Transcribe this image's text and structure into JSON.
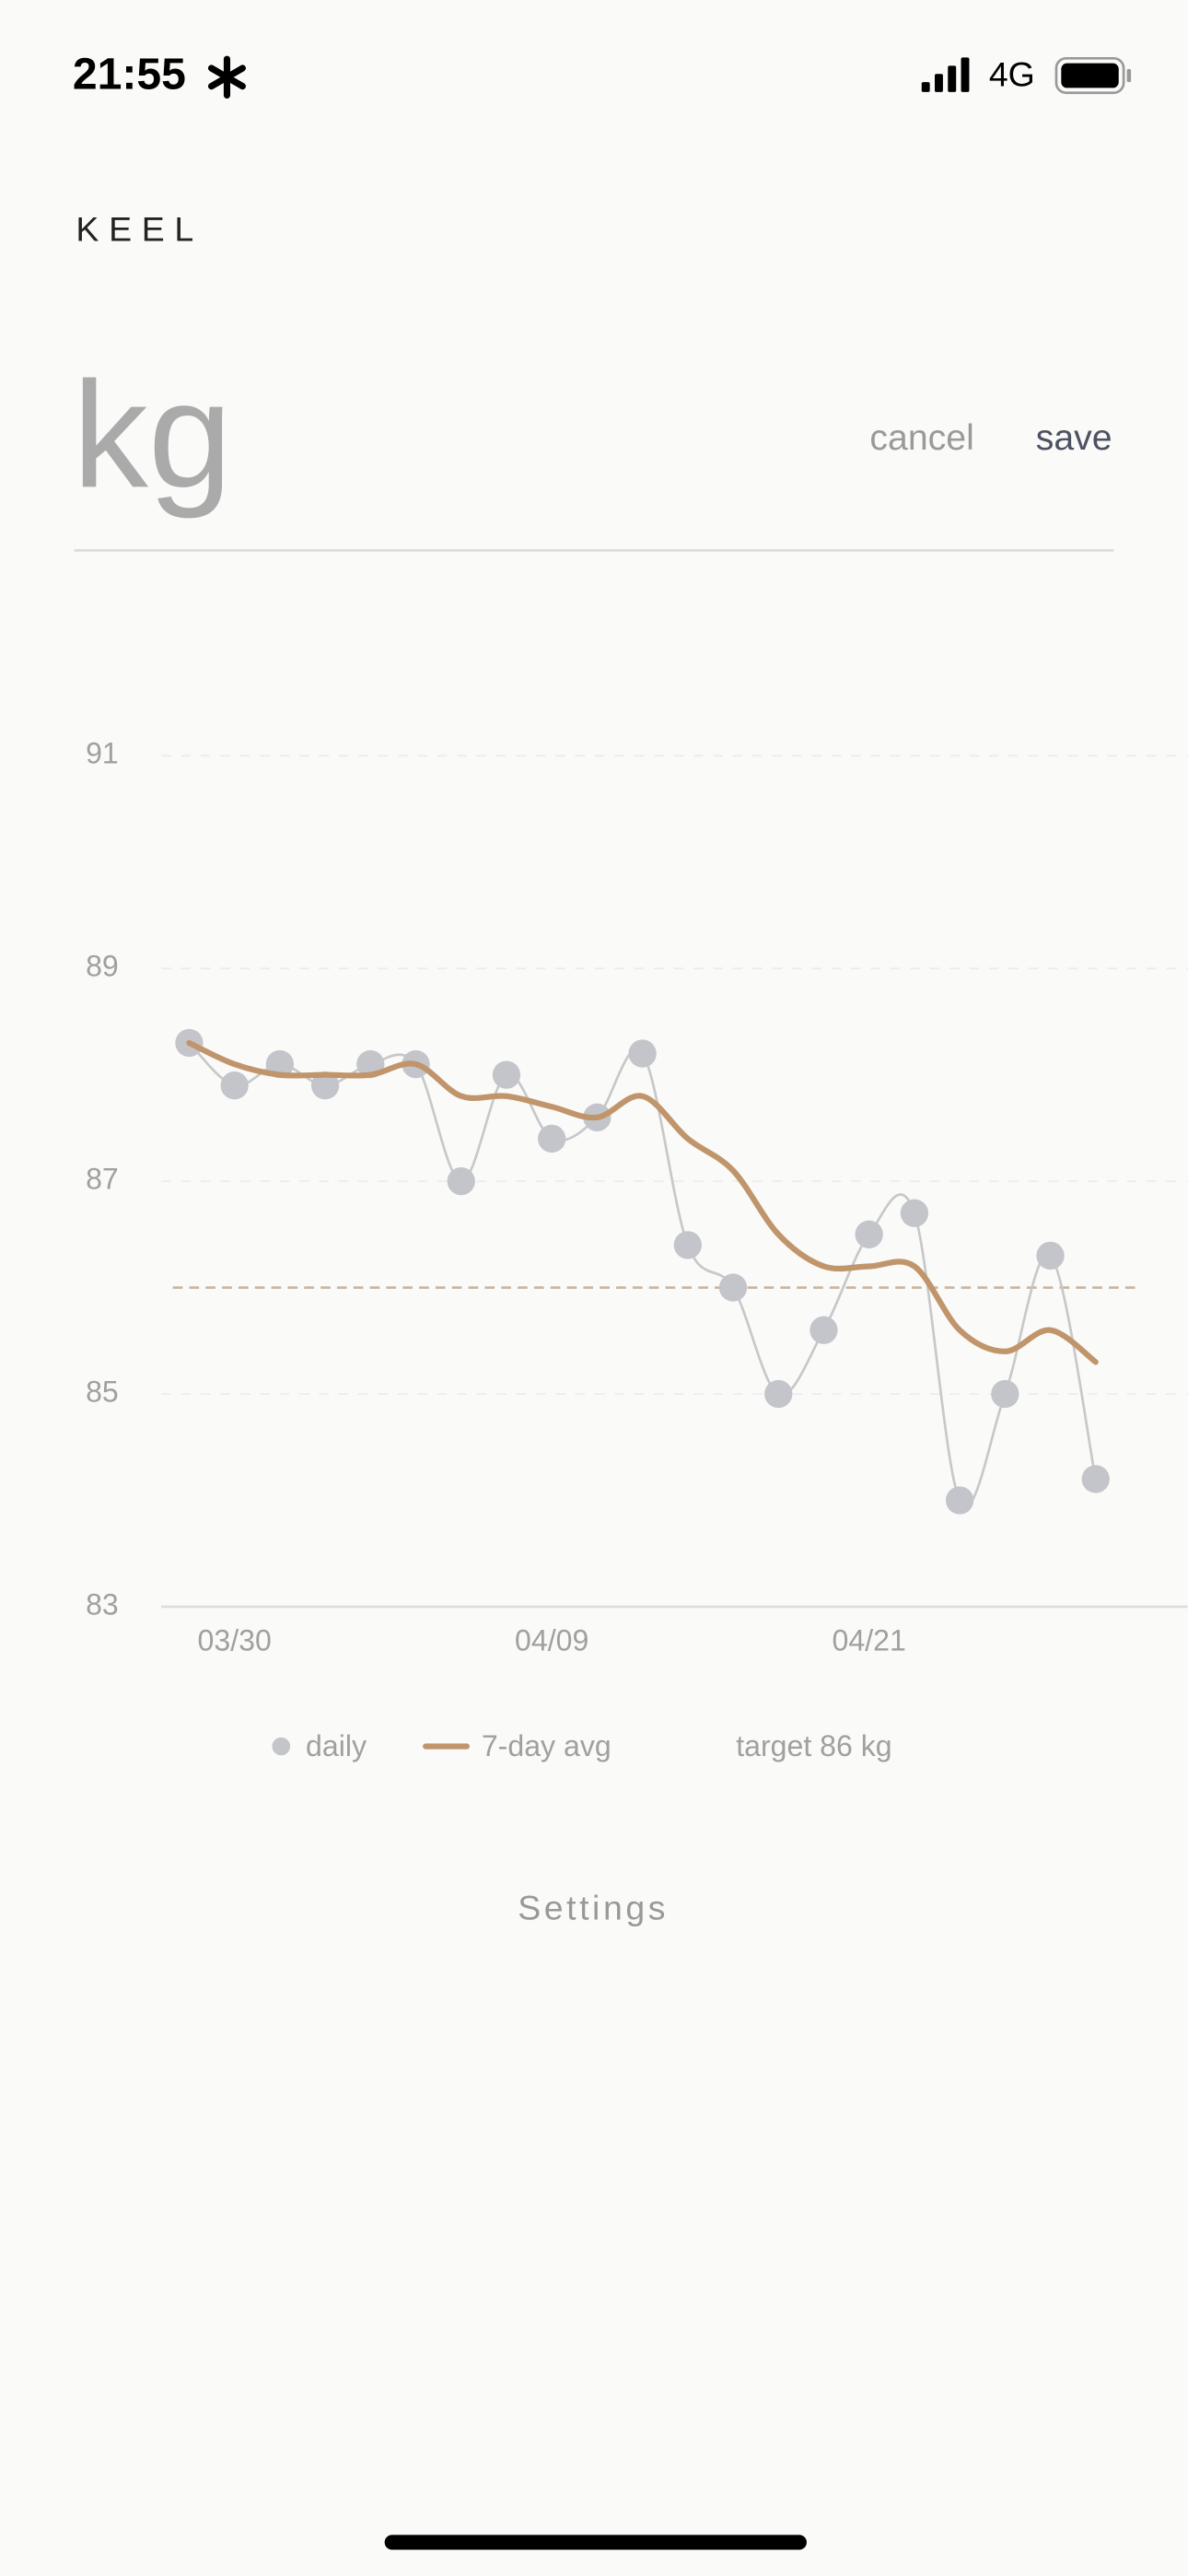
{
  "status_bar": {
    "time": "21:55",
    "network": "4G"
  },
  "app_title": "KEEL",
  "entry": {
    "placeholder": "kg",
    "cancel": "cancel",
    "save": "save"
  },
  "chart_data": {
    "type": "line",
    "categories": [
      null,
      "03/30",
      null,
      null,
      null,
      null,
      null,
      null,
      "04/09",
      null,
      null,
      null,
      null,
      null,
      null,
      "04/21",
      null,
      null,
      null,
      null,
      null
    ],
    "series": [
      {
        "name": "daily",
        "color": "#c3c5cb",
        "markers": true,
        "values": [
          88.3,
          87.9,
          88.1,
          87.9,
          88.1,
          88.1,
          87.0,
          88.0,
          87.4,
          87.6,
          88.2,
          86.4,
          86.0,
          85.0,
          85.6,
          86.5,
          86.7,
          84.0,
          85.0,
          86.3,
          84.2
        ]
      },
      {
        "name": "7-day avg",
        "color": "#c0956b",
        "markers": false,
        "values": [
          88.3,
          88.1,
          88.0,
          88.0,
          88.0,
          88.1,
          87.8,
          87.8,
          87.7,
          87.6,
          87.8,
          87.4,
          87.1,
          86.5,
          86.2,
          86.2,
          86.2,
          85.6,
          85.4,
          85.6,
          85.3
        ]
      }
    ],
    "target": {
      "label": "target 86 kg",
      "value": 86,
      "color": "#c9b49c"
    },
    "ylim": [
      83,
      91
    ],
    "yticks": [
      83,
      85,
      87,
      89,
      91
    ],
    "grid": true
  },
  "footer": {
    "settings": "Settings"
  }
}
